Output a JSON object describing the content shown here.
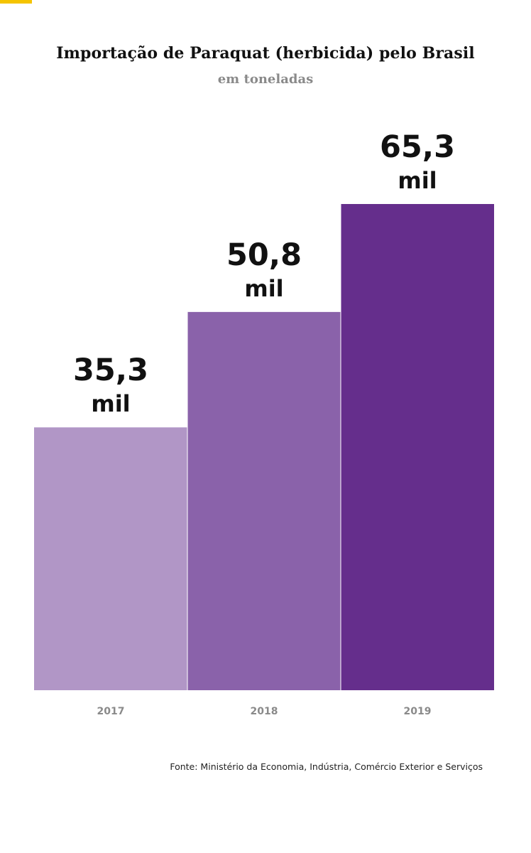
{
  "header": {
    "title": "Importação de Paraquat (herbicida) pelo Brasil",
    "subtitle": "em toneladas"
  },
  "source": "Fonte: Ministério da Economia, Indústria, Comércio Exterior e Serviços",
  "colors": {
    "accent": "#f5c400",
    "bar_2017": "#b196c6",
    "bar_2018": "#8a62aa",
    "bar_2019": "#652e8c"
  },
  "chart_data": {
    "type": "bar",
    "title": "Importação de Paraquat (herbicida) pelo Brasil",
    "subtitle": "em toneladas",
    "categories": [
      "2017",
      "2018",
      "2019"
    ],
    "values": [
      35300,
      50800,
      65300
    ],
    "data_labels": [
      {
        "number": "35,3",
        "unit": "mil"
      },
      {
        "number": "50,8",
        "unit": "mil"
      },
      {
        "number": "65,3",
        "unit": "mil"
      }
    ],
    "ylim": [
      0,
      65300
    ],
    "grid": false,
    "legend": "none"
  }
}
